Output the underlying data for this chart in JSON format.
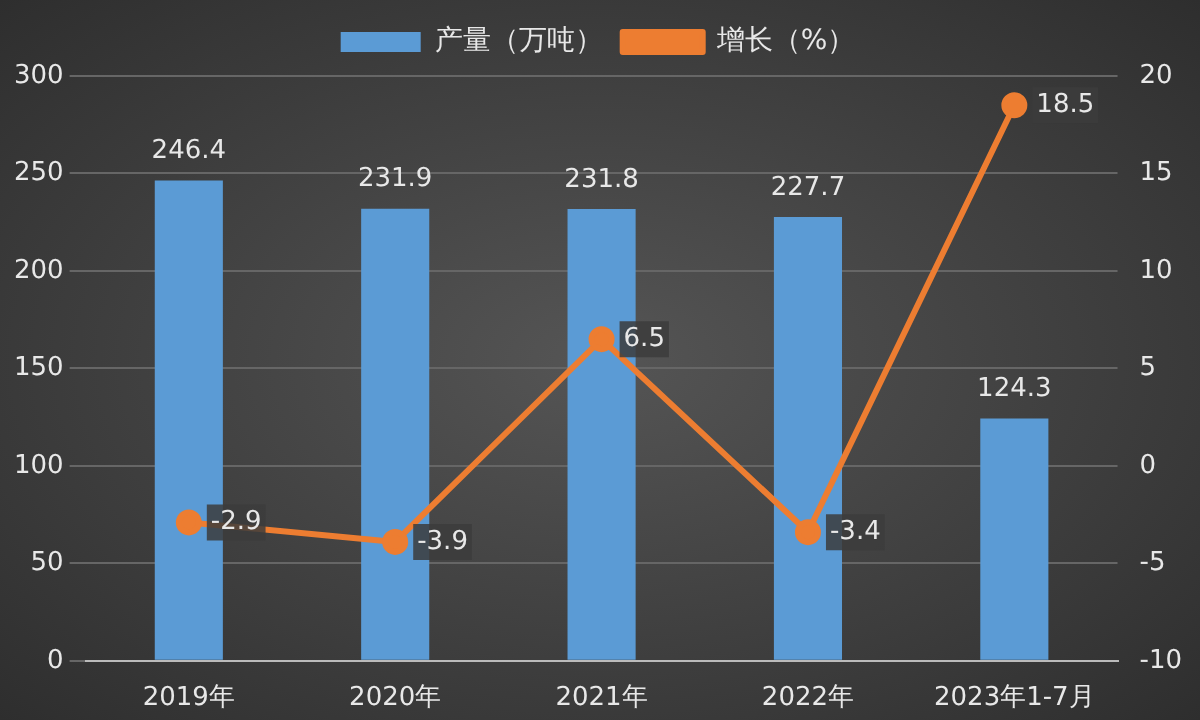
{
  "chart_data": {
    "type": "bar",
    "categories": [
      "2019年",
      "2020年",
      "2021年",
      "2022年",
      "2023年1-7月"
    ],
    "series": [
      {
        "name": "产量（万吨）",
        "color": "#5b9bd5",
        "values": [
          246.4,
          231.9,
          231.8,
          227.7,
          124.3
        ]
      },
      {
        "name": "增长（%）",
        "type": "line",
        "axis": "y2",
        "color": "#ed7d31",
        "values": [
          -2.9,
          -3.9,
          6.5,
          -3.4,
          18.5
        ]
      }
    ],
    "ylim": [
      0,
      300
    ],
    "yticks": [
      0,
      50,
      100,
      150,
      200,
      250,
      300
    ],
    "y2lim": [
      -10,
      20
    ],
    "y2ticks": [
      -10,
      -5,
      0,
      5,
      10,
      15,
      20
    ],
    "grid": "y",
    "legend": "top",
    "marker": "circle",
    "data_labels": true
  }
}
